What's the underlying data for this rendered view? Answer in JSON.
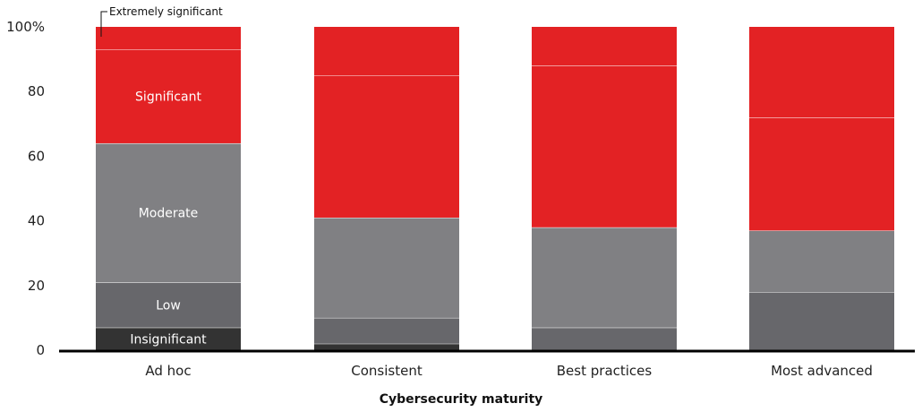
{
  "chart_data": {
    "type": "bar",
    "stacked": true,
    "categories": [
      "Ad hoc",
      "Consistent",
      "Best practices",
      "Most advanced"
    ],
    "series": [
      {
        "name": "Insignificant",
        "color": "#333333",
        "values": [
          7,
          2,
          0,
          0
        ]
      },
      {
        "name": "Low",
        "color": "#67676b",
        "values": [
          14,
          8,
          7,
          18
        ]
      },
      {
        "name": "Moderate",
        "color": "#808083",
        "values": [
          43,
          31,
          31,
          19
        ]
      },
      {
        "name": "Significant",
        "color": "#e32224",
        "values": [
          29,
          44,
          50,
          35
        ]
      },
      {
        "name": "Extremely significant",
        "color": "#e32224",
        "values": [
          7,
          15,
          12,
          28
        ]
      }
    ],
    "xlabel": "Cybersecurity maturity",
    "ylabel": "",
    "ylim": [
      0,
      100
    ],
    "yticks": [
      "0",
      "20",
      "40",
      "60",
      "80",
      "100%"
    ],
    "grid": false,
    "legend": "inline segment labels on first bar"
  }
}
